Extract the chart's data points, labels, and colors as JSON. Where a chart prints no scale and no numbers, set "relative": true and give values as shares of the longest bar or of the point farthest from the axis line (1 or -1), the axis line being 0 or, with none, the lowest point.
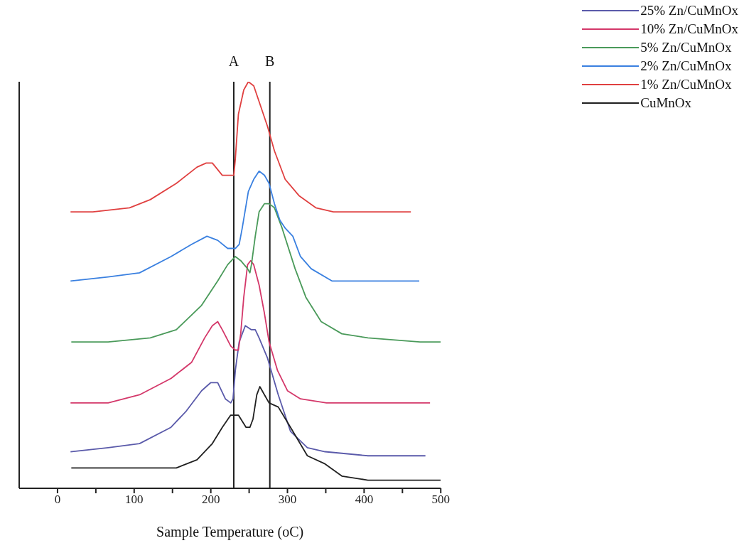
{
  "chart_data": {
    "type": "line",
    "relative": true,
    "xlabel": "Sample Temperature (oC)",
    "xlim": [
      -50,
      500
    ],
    "xticks": [
      0,
      {
        "value": 50,
        "label": null
      },
      100,
      {
        "value": 150,
        "label": null
      },
      200,
      {
        "value": 250,
        "label": null
      },
      300,
      {
        "value": 350,
        "label": null
      },
      400,
      {
        "value": 450,
        "label": null
      },
      500
    ],
    "legend": "top right",
    "marker": "none",
    "line_style": "solid",
    "ref_lines": [
      {
        "axis": "x",
        "value": 230,
        "label": "A",
        "color": "#202020"
      },
      {
        "axis": "x",
        "value": 277,
        "label": "B",
        "color": "#202020"
      }
    ],
    "series": [
      {
        "name": "25% Zn/CuMnOx",
        "color": "#5a5aaa",
        "x": [
          17,
          66,
          107,
          148,
          168,
          188,
          200,
          209,
          219,
          226,
          229,
          232,
          237,
          245,
          253,
          258,
          263,
          274,
          288,
          304,
          326,
          349,
          405,
          480
        ],
        "values": [
          0.09,
          0.1,
          0.11,
          0.15,
          0.19,
          0.24,
          0.26,
          0.26,
          0.22,
          0.21,
          0.22,
          0.29,
          0.36,
          0.4,
          0.39,
          0.39,
          0.37,
          0.32,
          0.23,
          0.14,
          0.1,
          0.09,
          0.08,
          0.08
        ]
      },
      {
        "name": "10% Zn/CuMnOx",
        "color": "#d4386a",
        "x": [
          17,
          66,
          107,
          148,
          175,
          192,
          202,
          209,
          215,
          226,
          232,
          236,
          239,
          243,
          248,
          252,
          256,
          263,
          270,
          276,
          287,
          300,
          317,
          351,
          405,
          486
        ],
        "values": [
          0.21,
          0.21,
          0.23,
          0.27,
          0.31,
          0.37,
          0.4,
          0.41,
          0.39,
          0.35,
          0.34,
          0.34,
          0.38,
          0.47,
          0.55,
          0.56,
          0.55,
          0.5,
          0.43,
          0.36,
          0.29,
          0.24,
          0.22,
          0.21,
          0.21,
          0.21
        ]
      },
      {
        "name": "5% Zn/CuMnOx",
        "color": "#4a9a5a",
        "x": [
          18,
          66,
          121,
          155,
          188,
          209,
          222,
          232,
          239,
          248,
          251,
          253,
          258,
          263,
          270,
          276,
          283,
          293,
          310,
          324,
          344,
          371,
          405,
          473,
          500
        ],
        "values": [
          0.36,
          0.36,
          0.37,
          0.39,
          0.45,
          0.51,
          0.55,
          0.57,
          0.56,
          0.54,
          0.53,
          0.55,
          0.62,
          0.68,
          0.7,
          0.7,
          0.69,
          0.64,
          0.54,
          0.47,
          0.41,
          0.38,
          0.37,
          0.36,
          0.36
        ]
      },
      {
        "name": "2% Zn/CuMnOx",
        "color": "#3a80e0",
        "x": [
          17,
          66,
          107,
          148,
          175,
          195,
          209,
          222,
          232,
          237,
          241,
          249,
          256,
          263,
          270,
          276,
          283,
          290,
          297,
          307,
          317,
          331,
          358,
          405,
          472
        ],
        "values": [
          0.51,
          0.52,
          0.53,
          0.57,
          0.6,
          0.62,
          0.61,
          0.59,
          0.59,
          0.6,
          0.64,
          0.73,
          0.76,
          0.78,
          0.77,
          0.75,
          0.7,
          0.66,
          0.64,
          0.62,
          0.57,
          0.54,
          0.51,
          0.51,
          0.51
        ]
      },
      {
        "name": "1% Zn/CuMnOx",
        "color": "#e04040",
        "x": [
          17,
          46,
          94,
          121,
          155,
          182,
          194,
          202,
          215,
          226,
          230,
          232,
          236,
          243,
          249,
          256,
          265,
          274,
          283,
          297,
          315,
          337,
          360,
          461
        ],
        "values": [
          0.68,
          0.68,
          0.69,
          0.71,
          0.75,
          0.79,
          0.8,
          0.8,
          0.77,
          0.77,
          0.77,
          0.81,
          0.92,
          0.98,
          1,
          0.99,
          0.94,
          0.89,
          0.83,
          0.76,
          0.72,
          0.69,
          0.68,
          0.68
        ]
      },
      {
        "name": "CuMnOx",
        "color": "#202020",
        "x": [
          18,
          66,
          121,
          155,
          182,
          202,
          215,
          226,
          230,
          236,
          246,
          251,
          255,
          260,
          264,
          270,
          276,
          288,
          304,
          326,
          349,
          371,
          405,
          428,
          500
        ],
        "values": [
          0.05,
          0.05,
          0.05,
          0.05,
          0.07,
          0.11,
          0.15,
          0.18,
          0.18,
          0.18,
          0.15,
          0.15,
          0.17,
          0.23,
          0.25,
          0.23,
          0.21,
          0.2,
          0.15,
          0.08,
          0.06,
          0.03,
          0.02,
          0.02,
          0.02
        ]
      }
    ]
  }
}
